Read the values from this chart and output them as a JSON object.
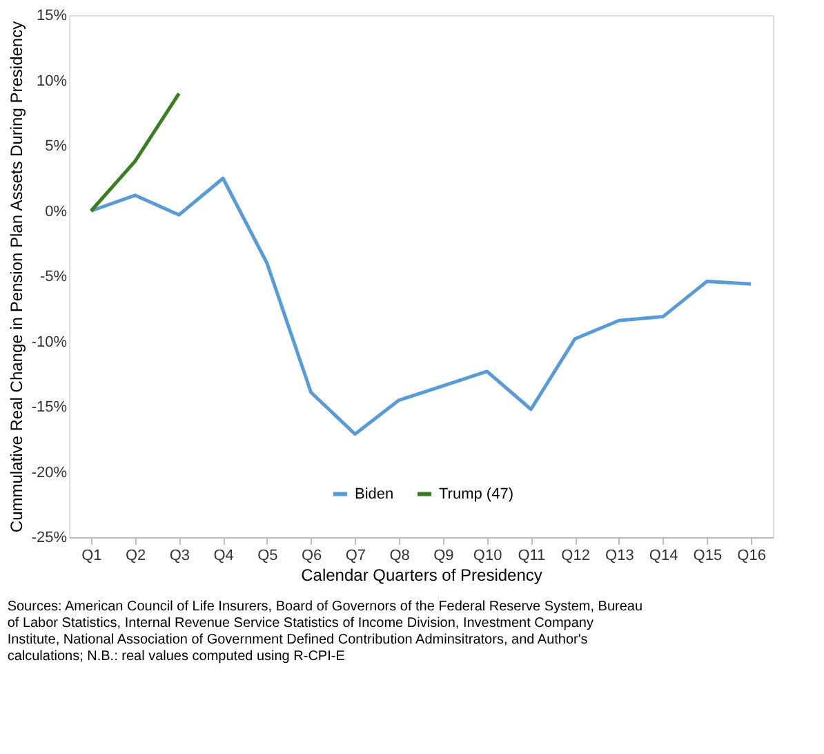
{
  "chart_data": {
    "type": "line",
    "xlabel": "Calendar Quarters of Presidency",
    "ylabel": "Cummulative Real Change in Pension Plan Assets During Presidency",
    "categories": [
      "Q1",
      "Q2",
      "Q3",
      "Q4",
      "Q5",
      "Q6",
      "Q7",
      "Q8",
      "Q9",
      "Q10",
      "Q11",
      "Q12",
      "Q13",
      "Q14",
      "Q15",
      "Q16"
    ],
    "series": [
      {
        "name": "Biden",
        "color": "#5b9bd5",
        "values": [
          0,
          1.2,
          -0.3,
          2.5,
          -4,
          -13.9,
          -17.1,
          -14.5,
          -13.4,
          -12.3,
          -15.2,
          -9.8,
          -8.4,
          -8.1,
          -5.4,
          -5.6
        ]
      },
      {
        "name": "Trump (47)",
        "color": "#3a7d22",
        "values": [
          0,
          3.8,
          9.0,
          null,
          null,
          null,
          null,
          null,
          null,
          null,
          null,
          null,
          null,
          null,
          null,
          null
        ]
      }
    ],
    "ylim": [
      -25,
      15
    ],
    "yticks": [
      {
        "value": -25,
        "label": "-25%"
      },
      {
        "value": -20,
        "label": "-20%"
      },
      {
        "value": -15,
        "label": "-15%"
      },
      {
        "value": -10,
        "label": "-10%"
      },
      {
        "value": -5,
        "label": "-5%"
      },
      {
        "value": 0,
        "label": "0%"
      },
      {
        "value": 5,
        "label": "5%"
      },
      {
        "value": 10,
        "label": "10%"
      },
      {
        "value": 15,
        "label": "15%"
      }
    ],
    "grid": false,
    "legend": "bottom",
    "marker": "none",
    "line_style": "solid",
    "annotations": [
      "Sources: American Council of Life Insurers, Board of Governors of the Federal Reserve System, Bureau of Labor Statistics, Internal Revenue Service Statistics of Income Division, Investment Company Institute, National Association of Government Defined Contribution Adminsitrators, and Author's calculations; N.B.: real values computed using R-CPI-E"
    ]
  }
}
